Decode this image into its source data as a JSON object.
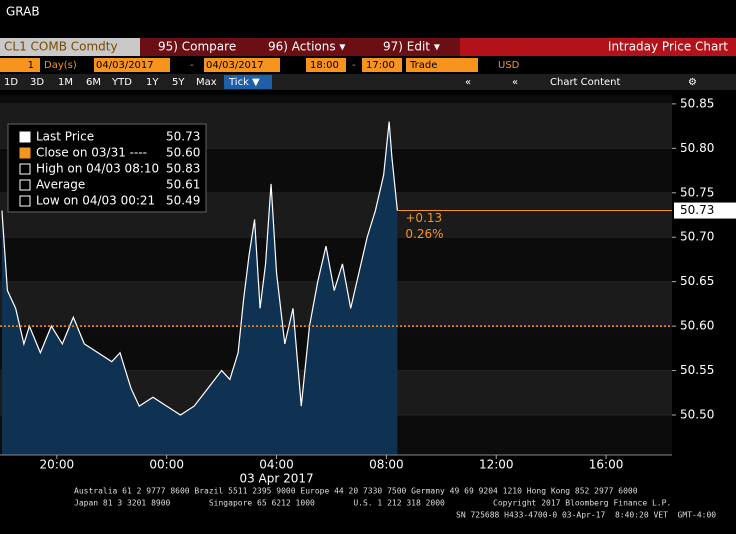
{
  "header": {
    "title": "GRAB"
  },
  "toolbar": {
    "security": "CL1 COMB Comdty",
    "buttons": [
      "95) Compare",
      "96) Actions ▾",
      "97) Edit ▾"
    ],
    "function_title": "Intraday Price Chart"
  },
  "settings": {
    "period_count": "1",
    "period_unit": "Day(s)",
    "start_date": "04/03/2017",
    "start_time": "18:00",
    "separator": "-",
    "end_date": "04/03/2017",
    "end_time": "17:00",
    "event": "Trade",
    "currency": "USD"
  },
  "ranges": [
    "1D",
    "3D",
    "1M",
    "6M",
    "YTD",
    "1Y",
    "5Y",
    "Max"
  ],
  "interval": "Tick ▼",
  "nav": [
    "«",
    "«"
  ],
  "chart_content": "Chart Content",
  "settings_icon": "⚙",
  "legend": [
    {
      "label": "Last Price",
      "value": "50.73"
    },
    {
      "label": "Close on 03/31 ----",
      "value": "50.60"
    },
    {
      "label": "High on 04/03 08:10",
      "value": "50.83"
    },
    {
      "label": "Average",
      "value": "50.61"
    },
    {
      "label": "Low on 04/03 00:21",
      "value": "50.49"
    }
  ],
  "chart_data": {
    "type": "area",
    "x": [
      -6.0,
      -5.8,
      -5.5,
      -5.2,
      -5.0,
      -4.6,
      -4.2,
      -3.8,
      -3.4,
      -3.0,
      -2.5,
      -2.0,
      -1.7,
      -1.3,
      -1.0,
      -0.5,
      0,
      0.5,
      1.0,
      1.5,
      2.0,
      2.3,
      2.6,
      2.8,
      3.0,
      3.2,
      3.4,
      3.6,
      3.8,
      4.0,
      4.3,
      4.6,
      4.9,
      5.2,
      5.5,
      5.8,
      6.1,
      6.4,
      6.7,
      7.0,
      7.3,
      7.6,
      7.9,
      8.1,
      8.2,
      8.4
    ],
    "values": [
      50.73,
      50.64,
      50.62,
      50.58,
      50.6,
      50.57,
      50.6,
      50.58,
      50.61,
      50.58,
      50.57,
      50.56,
      50.57,
      50.53,
      50.51,
      50.52,
      50.51,
      50.5,
      50.51,
      50.53,
      50.55,
      50.54,
      50.57,
      50.63,
      50.68,
      50.72,
      50.62,
      50.67,
      50.76,
      50.66,
      50.58,
      50.62,
      50.51,
      50.6,
      50.65,
      50.69,
      50.64,
      50.67,
      50.62,
      50.66,
      50.7,
      50.73,
      50.77,
      50.83,
      50.79,
      50.73
    ],
    "line_color": "#ffffff",
    "fill_color": "#0f3152",
    "xlim": [
      -6.07,
      18.4
    ],
    "ylim": [
      50.455,
      50.86
    ],
    "xticks": [
      {
        "value": -4,
        "label": "20:00"
      },
      {
        "value": 0,
        "label": "00:00"
      },
      {
        "value": 4,
        "label": "04:00"
      },
      {
        "value": 8,
        "label": "08:00"
      },
      {
        "value": 12,
        "label": "12:00"
      },
      {
        "value": 16,
        "label": "16:00"
      }
    ],
    "yticks": [
      {
        "value": 50.5,
        "label": "50.50"
      },
      50.55,
      {
        "value": 50.6,
        "label": "50.60"
      },
      50.65,
      {
        "value": 50.7,
        "label": "50.70"
      },
      50.75,
      {
        "value": 50.8,
        "label": "50.80"
      },
      50.85
    ],
    "x_label": "03 Apr 2017",
    "close_line": {
      "value": 50.6,
      "color": "#f7941d"
    },
    "last_line": {
      "value": 50.73,
      "label": "50.73",
      "color": "#f7941d"
    },
    "annotations": [
      "+0.13",
      "0.26%"
    ]
  },
  "footer": [
    "Australia 61 2 9777 8600 Brazil 5511 2395 9000 Europe 44 20 7330 7500 Germany 49 69 9204 1210 Hong Kong 852 2977 6000",
    "Japan 81 3 3201 8900        Singapore 65 6212 1000        U.S. 1 212 318 2000          Copyright 2017 Bloomberg Finance L.P.",
    "SN 725688 H433-4700-0 03-Apr-17  8:40:20 VET  GMT-4:00"
  ]
}
